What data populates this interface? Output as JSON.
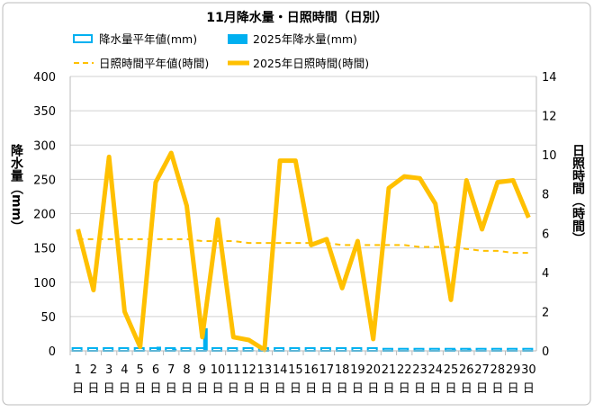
{
  "chart_data": {
    "type": "bar+line",
    "title": "11月降水量・日照時間（日別）",
    "ylabel_left": "降水量（mm）",
    "ylabel_right": "日照時間（時間）",
    "ylim_left": [
      0,
      400
    ],
    "ylim_right": [
      0,
      14
    ],
    "yticks_left": [
      "0",
      "50",
      "100",
      "150",
      "200",
      "250",
      "300",
      "350",
      "400"
    ],
    "yticks_right": [
      "0",
      "2",
      "4",
      "6",
      "8",
      "10",
      "12",
      "14"
    ],
    "categories": [
      "1",
      "2",
      "3",
      "4",
      "5",
      "6",
      "7",
      "8",
      "9",
      "10",
      "11",
      "12",
      "13",
      "14",
      "15",
      "16",
      "17",
      "18",
      "19",
      "20",
      "21",
      "22",
      "23",
      "24",
      "25",
      "26",
      "27",
      "28",
      "29",
      "30"
    ],
    "category_suffix": "日",
    "grid": true,
    "legend_position": "top",
    "series": [
      {
        "name": "降水量平年値(mm)",
        "type": "bar-outline",
        "axis": "left",
        "color": "#00b0f0",
        "values": [
          4,
          4,
          4,
          4,
          4,
          4,
          4,
          4,
          4,
          4,
          4,
          4,
          4,
          4,
          4,
          4,
          4,
          4,
          4,
          4,
          3,
          3,
          3,
          3,
          3,
          3,
          3,
          3,
          3,
          3
        ]
      },
      {
        "name": "2025年降水量(mm)",
        "type": "bar",
        "axis": "left",
        "color": "#00b0f0",
        "values": [
          0,
          0,
          0,
          0,
          1,
          6,
          3,
          0,
          33,
          0,
          1,
          1,
          1,
          0,
          0,
          0,
          0,
          0,
          0,
          0,
          0,
          0,
          0,
          0,
          2,
          2,
          0,
          0,
          0,
          0
        ]
      },
      {
        "name": "日照時間平年値(時間)",
        "type": "line-dashed",
        "axis": "right",
        "color": "#ffc000",
        "values": [
          5.7,
          5.7,
          5.7,
          5.7,
          5.7,
          5.7,
          5.7,
          5.7,
          5.6,
          5.6,
          5.6,
          5.5,
          5.5,
          5.5,
          5.5,
          5.5,
          5.5,
          5.4,
          5.4,
          5.4,
          5.4,
          5.4,
          5.3,
          5.3,
          5.3,
          5.2,
          5.1,
          5.1,
          5.0,
          5.0
        ]
      },
      {
        "name": "2025年日照時間(時間)",
        "type": "line",
        "axis": "right",
        "color": "#ffc000",
        "values": [
          6.2,
          3.1,
          9.9,
          2.0,
          0.2,
          8.6,
          10.1,
          7.4,
          0.7,
          6.7,
          0.7,
          0.55,
          0.05,
          9.7,
          9.7,
          5.4,
          5.7,
          3.2,
          5.6,
          0.6,
          8.3,
          8.9,
          8.8,
          7.5,
          2.6,
          8.7,
          6.2,
          8.6,
          8.7,
          6.8
        ]
      }
    ]
  }
}
